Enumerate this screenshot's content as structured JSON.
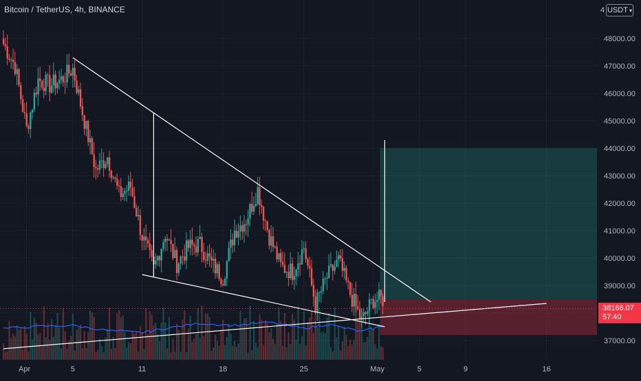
{
  "header": {
    "title": "Bitcoin / TetherUS, 4h, BINANCE",
    "axis_truncated_label": "4",
    "currency": "USDT"
  },
  "price_axis": {
    "labels": [
      "48000.00",
      "47000.00",
      "46000.00",
      "45000.00",
      "44000.00",
      "43000.00",
      "42000.00",
      "41000.00",
      "40000.00",
      "39000.00",
      "37000.00"
    ],
    "last_price": "38166.07",
    "countdown": "57:40"
  },
  "time_axis": {
    "labels": [
      "Apr",
      "5",
      "11",
      "18",
      "25",
      "May",
      "5",
      "9",
      "16"
    ]
  },
  "colors": {
    "background": "#131722",
    "up": "#26a69a",
    "down": "#ef5350",
    "grid": "#1e222d",
    "indicator": "#2962ff",
    "trendline": "#ffffff",
    "profit_zone": "rgba(38,166,154,0.25)",
    "loss_zone": "rgba(242,54,69,0.30)",
    "price_tag": "#f23645"
  },
  "chart_data": {
    "type": "candlestick",
    "symbol": "BTCUSDT",
    "interval": "4h",
    "ylim": [
      36200,
      49400
    ],
    "close_path": [
      {
        "date": "2022-03-30",
        "value": 47800
      },
      {
        "date": "2022-03-31",
        "value": 47000
      },
      {
        "date": "2022-04-01",
        "value": 44700
      },
      {
        "date": "2022-04-02",
        "value": 46500
      },
      {
        "date": "2022-04-03",
        "value": 46300
      },
      {
        "date": "2022-04-04",
        "value": 46500
      },
      {
        "date": "2022-04-05",
        "value": 46900
      },
      {
        "date": "2022-04-06",
        "value": 45000
      },
      {
        "date": "2022-04-07",
        "value": 43200
      },
      {
        "date": "2022-04-08",
        "value": 43700
      },
      {
        "date": "2022-04-09",
        "value": 42300
      },
      {
        "date": "2022-04-10",
        "value": 42600
      },
      {
        "date": "2022-04-11",
        "value": 40800
      },
      {
        "date": "2022-04-12",
        "value": 39600
      },
      {
        "date": "2022-04-13",
        "value": 40900
      },
      {
        "date": "2022-04-14",
        "value": 39800
      },
      {
        "date": "2022-04-15",
        "value": 40400
      },
      {
        "date": "2022-04-16",
        "value": 40500
      },
      {
        "date": "2022-04-17",
        "value": 39800
      },
      {
        "date": "2022-04-18",
        "value": 39300
      },
      {
        "date": "2022-04-19",
        "value": 41000
      },
      {
        "date": "2022-04-20",
        "value": 41400
      },
      {
        "date": "2022-04-21",
        "value": 42500
      },
      {
        "date": "2022-04-22",
        "value": 40800
      },
      {
        "date": "2022-04-23",
        "value": 39700
      },
      {
        "date": "2022-04-24",
        "value": 39500
      },
      {
        "date": "2022-04-25",
        "value": 40400
      },
      {
        "date": "2022-04-26",
        "value": 38300
      },
      {
        "date": "2022-04-27",
        "value": 39300
      },
      {
        "date": "2022-04-28",
        "value": 39900
      },
      {
        "date": "2022-04-29",
        "value": 38700
      },
      {
        "date": "2022-04-30",
        "value": 37700
      },
      {
        "date": "2022-05-01",
        "value": 38500
      },
      {
        "date": "2022-05-02",
        "value": 38500
      }
    ],
    "indicator_path": [
      {
        "date": "2022-03-30",
        "value": 0.45
      },
      {
        "date": "2022-04-02",
        "value": 0.55
      },
      {
        "date": "2022-04-05",
        "value": 0.6
      },
      {
        "date": "2022-04-08",
        "value": 0.35
      },
      {
        "date": "2022-04-11",
        "value": 0.25
      },
      {
        "date": "2022-04-13",
        "value": 0.45
      },
      {
        "date": "2022-04-16",
        "value": 0.7
      },
      {
        "date": "2022-04-19",
        "value": 0.6
      },
      {
        "date": "2022-04-22",
        "value": 0.75
      },
      {
        "date": "2022-04-25",
        "value": 0.45
      },
      {
        "date": "2022-04-27",
        "value": 0.65
      },
      {
        "date": "2022-04-30",
        "value": 0.3
      },
      {
        "date": "2022-05-02",
        "value": 0.6
      }
    ],
    "trendlines": [
      {
        "name": "resistance",
        "from": {
          "date": "2022-04-05",
          "value": 47300
        },
        "to": {
          "date": "2022-05-06",
          "value": 38400
        }
      },
      {
        "name": "support",
        "from": {
          "date": "2022-04-11",
          "value": 39400
        },
        "to": {
          "date": "2022-05-02",
          "value": 37500
        }
      },
      {
        "name": "long-support",
        "from": {
          "date": "2022-03-30",
          "value": 36700
        },
        "to": {
          "date": "2022-05-16",
          "value": 38350
        }
      }
    ],
    "pole_lines": [
      {
        "date": "2022-04-12",
        "from": 39300,
        "to": 45300
      },
      {
        "date": "2022-05-02",
        "from": 38400,
        "to": 44300
      }
    ],
    "position": {
      "type": "long",
      "entry": 38500,
      "target": 44000,
      "stop": 37200,
      "start_date": "2022-05-01",
      "end_date": "2022-05-16"
    },
    "grid": true,
    "volume": true
  }
}
